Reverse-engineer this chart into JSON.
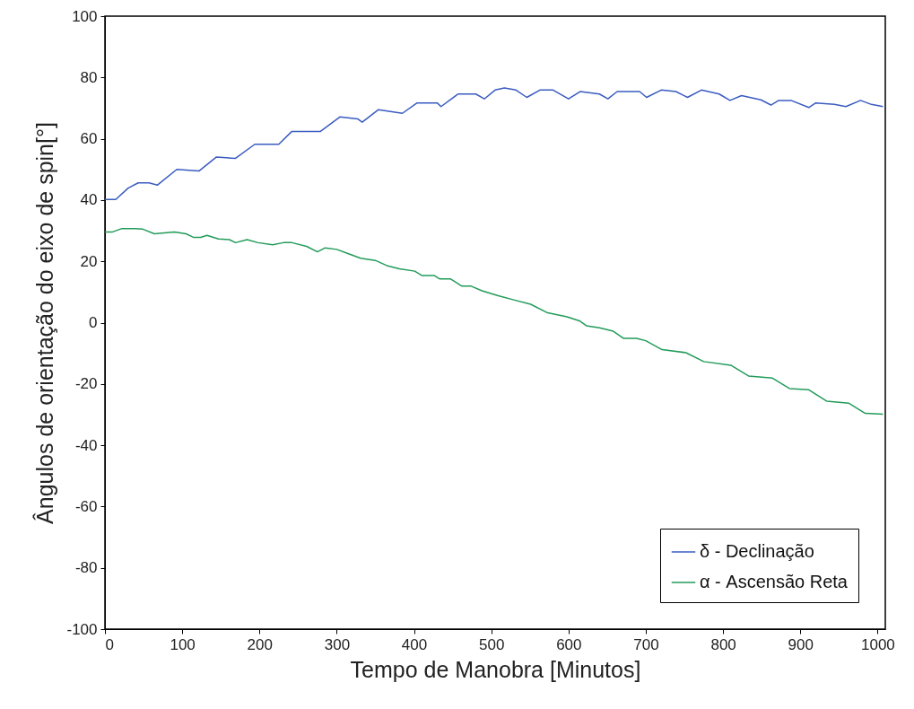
{
  "chart_data": {
    "type": "line",
    "xlabel": "Tempo de Manobra [Minutos]",
    "ylabel": "Ângulos de orientação do eixo de spin[°]",
    "xlim": [
      0,
      1010
    ],
    "ylim": [
      -100,
      100
    ],
    "xticks": [
      0,
      100,
      200,
      300,
      400,
      500,
      600,
      700,
      800,
      900,
      1000
    ],
    "yticks": [
      -100,
      -80,
      -60,
      -40,
      -20,
      0,
      20,
      40,
      60,
      80,
      100
    ],
    "grid": false,
    "legend": "bottom right",
    "marker": "none",
    "line_style": "solid",
    "series": [
      {
        "name": "δ - Declinação",
        "color": "#3a5cc0",
        "x": [
          0,
          14,
          30,
          43,
          57,
          68,
          93,
          122,
          144,
          169,
          194,
          225,
          242,
          279,
          304,
          327,
          333,
          354,
          385,
          404,
          430,
          435,
          457,
          480,
          491,
          505,
          517,
          532,
          546,
          563,
          580,
          600,
          615,
          640,
          651,
          663,
          692,
          701,
          720,
          739,
          754,
          772,
          795,
          809,
          824,
          849,
          862,
          872,
          888,
          911,
          920,
          944,
          959,
          978,
          992,
          1007
        ],
        "values": [
          40.2,
          40.2,
          43.9,
          45.6,
          45.6,
          44.9,
          50.0,
          49.5,
          54.0,
          53.6,
          58.2,
          58.2,
          62.4,
          62.4,
          67.1,
          66.5,
          65.4,
          69.5,
          68.3,
          71.7,
          71.7,
          70.5,
          74.6,
          74.6,
          73.0,
          75.9,
          76.6,
          75.9,
          73.5,
          75.9,
          75.9,
          73.0,
          75.4,
          74.6,
          73.0,
          75.4,
          75.4,
          73.5,
          75.9,
          75.4,
          73.5,
          75.9,
          74.6,
          72.5,
          74.1,
          72.7,
          71.0,
          72.5,
          72.5,
          70.2,
          71.7,
          71.2,
          70.5,
          72.5,
          71.2,
          70.5
        ]
      },
      {
        "name": "α - Ascensão Reta",
        "color": "#239b5a",
        "x": [
          0,
          10,
          22,
          39,
          49,
          64,
          90,
          105,
          115,
          124,
          132,
          147,
          161,
          169,
          184,
          198,
          217,
          231,
          242,
          261,
          275,
          285,
          300,
          316,
          331,
          350,
          366,
          381,
          401,
          410,
          426,
          433,
          447,
          462,
          474,
          488,
          509,
          528,
          551,
          573,
          598,
          615,
          623,
          640,
          658,
          671,
          688,
          700,
          721,
          752,
          775,
          810,
          833,
          864,
          886,
          911,
          934,
          963,
          984,
          1007
        ],
        "values": [
          29.6,
          29.6,
          30.7,
          30.7,
          30.5,
          29.0,
          29.6,
          29.0,
          27.8,
          27.8,
          28.5,
          27.3,
          27.1,
          26.1,
          27.1,
          26.1,
          25.4,
          26.1,
          26.1,
          24.9,
          23.1,
          24.4,
          23.9,
          22.4,
          21.0,
          20.3,
          18.5,
          17.6,
          16.8,
          15.4,
          15.4,
          14.3,
          14.3,
          11.9,
          11.9,
          10.4,
          8.8,
          7.5,
          6.0,
          3.2,
          1.9,
          0.5,
          -1.0,
          -1.7,
          -2.8,
          -5.1,
          -5.1,
          -5.9,
          -8.8,
          -9.8,
          -12.7,
          -13.9,
          -17.4,
          -18.1,
          -21.5,
          -21.9,
          -25.6,
          -26.3,
          -29.6,
          -29.9
        ]
      }
    ]
  }
}
